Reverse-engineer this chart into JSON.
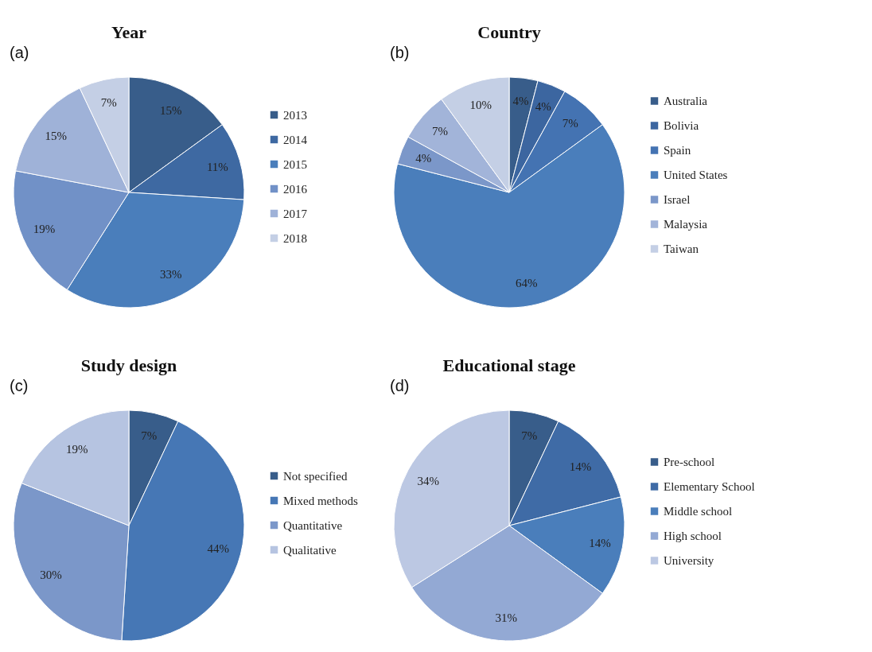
{
  "chart_data": [
    {
      "type": "pie",
      "title": "Year",
      "annotations": [
        "(a)"
      ],
      "legend": "right",
      "categories": [
        "2013",
        "2014",
        "2015",
        "2016",
        "2017",
        "2018"
      ],
      "values": [
        15,
        11,
        33,
        19,
        15,
        7
      ],
      "value_labels": [
        "15%",
        "11%",
        "33%",
        "19%",
        "15%",
        "7%"
      ],
      "colors": [
        "#385d8a",
        "#3e69a2",
        "#4a7ebb",
        "#7191c7",
        "#9fb2d8",
        "#c4cfe5"
      ]
    },
    {
      "type": "pie",
      "title": "Country",
      "annotations": [
        "(b)"
      ],
      "legend": "right",
      "categories": [
        "Australia",
        "Bolivia",
        "Spain",
        "United States",
        "Israel",
        "Malaysia",
        "Taiwan"
      ],
      "values": [
        4,
        4,
        7,
        64,
        4,
        7,
        10
      ],
      "value_labels": [
        "4%",
        "4%",
        "7%",
        "64%",
        "4%",
        "7%",
        "10%"
      ],
      "colors": [
        "#385d8a",
        "#3c66a0",
        "#4473b2",
        "#4a7ebb",
        "#7b97c9",
        "#a2b4d9",
        "#c4cfe5"
      ]
    },
    {
      "type": "pie",
      "title": "Study design",
      "annotations": [
        "(c)"
      ],
      "legend": "right",
      "categories": [
        "Not specified",
        "Mixed methods",
        "Quantitative",
        "Qualitative"
      ],
      "values": [
        7,
        44,
        30,
        19
      ],
      "value_labels": [
        "7%",
        "44%",
        "30%",
        "19%"
      ],
      "colors": [
        "#385d8a",
        "#4677b5",
        "#7b97c9",
        "#b6c4e1"
      ]
    },
    {
      "type": "pie",
      "title": "Educational stage",
      "annotations": [
        "(d)"
      ],
      "legend": "right",
      "categories": [
        "Pre-school",
        "Elementary School",
        "Middle school",
        "High school",
        "University"
      ],
      "values": [
        7,
        14,
        14,
        31,
        34
      ],
      "value_labels": [
        "7%",
        "14%",
        "14%",
        "31%",
        "34%"
      ],
      "colors": [
        "#385d8a",
        "#3f6ba6",
        "#4a7ebb",
        "#93a9d4",
        "#bcc8e3"
      ]
    }
  ]
}
